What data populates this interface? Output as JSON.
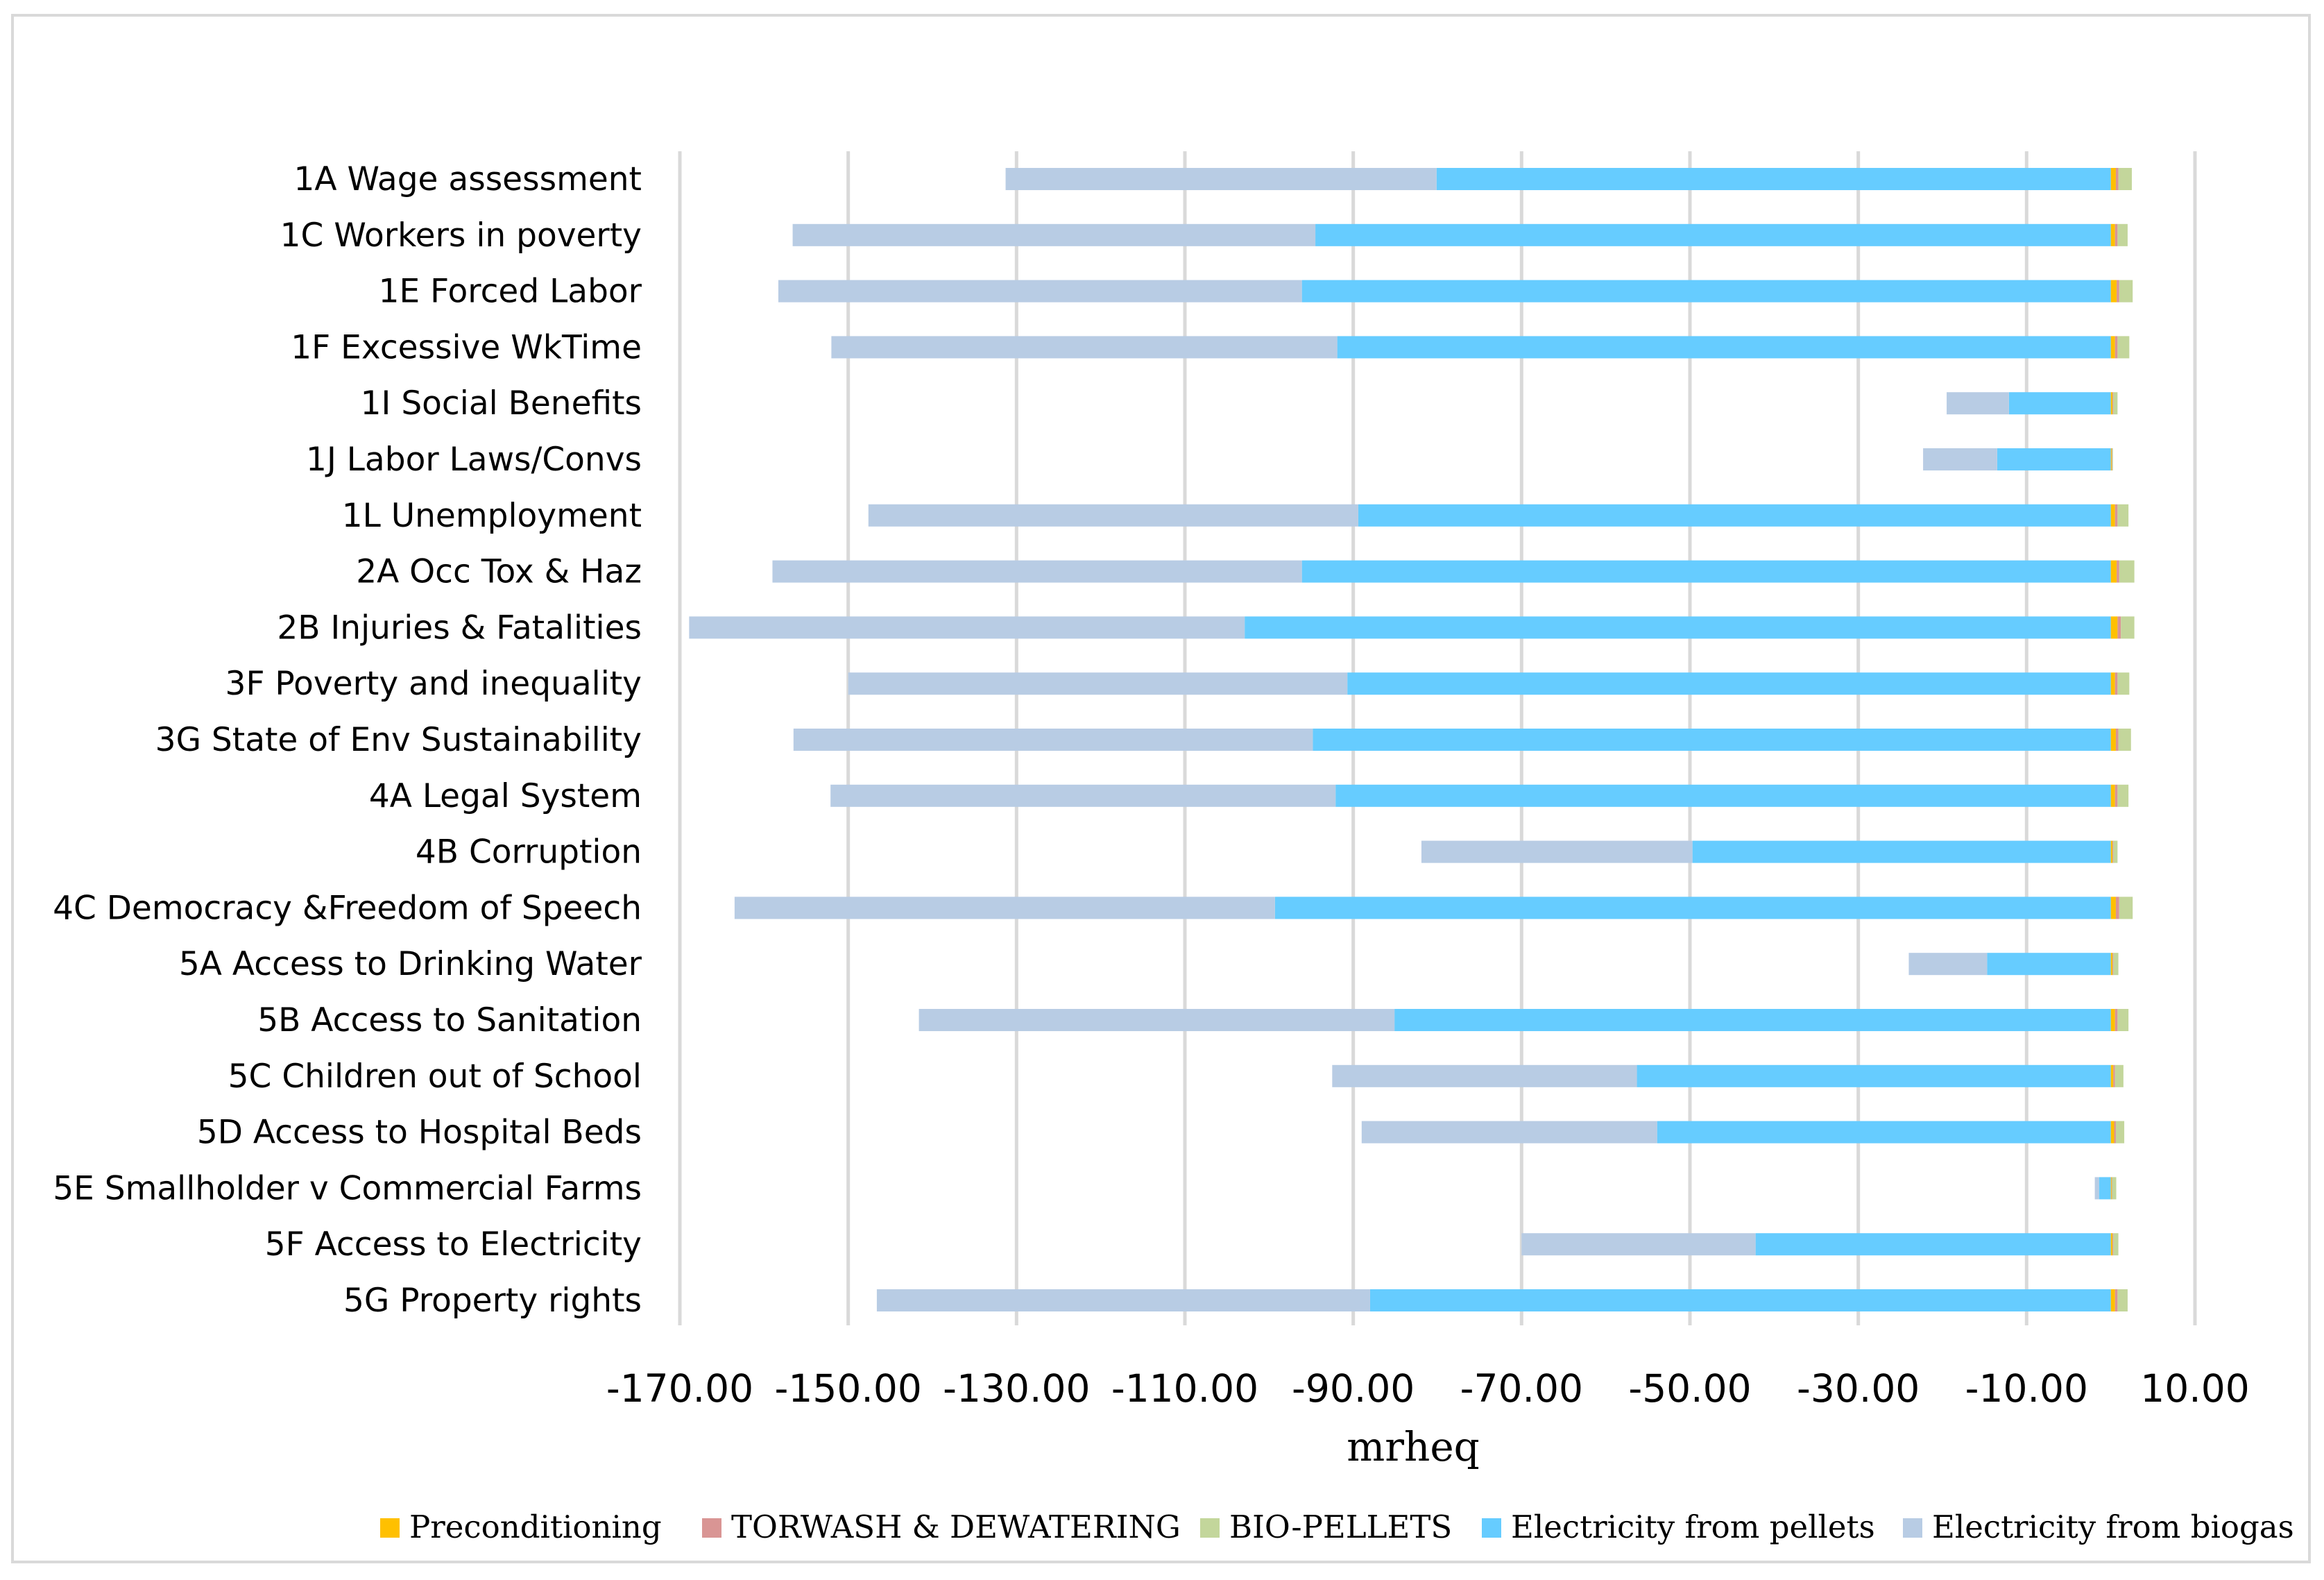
{
  "chart_data": {
    "type": "bar",
    "orientation": "horizontal",
    "stacked": true,
    "title": "",
    "xlabel": "mrheq",
    "ylabel": "",
    "xlim": [
      -170,
      10
    ],
    "xticks": [
      -170,
      -150,
      -130,
      -110,
      -90,
      -70,
      -50,
      -30,
      -10,
      10
    ],
    "xtick_labels": [
      "-170.00",
      "-150.00",
      "-130.00",
      "-110.00",
      "-90.00",
      "-70.00",
      "-50.00",
      "-30.00",
      "-10.00",
      "10.00"
    ],
    "grid": true,
    "legend_position": "bottom",
    "categories": [
      "1A Wage assessment",
      "1C Workers in poverty",
      "1E Forced Labor",
      "1F Excessive WkTime",
      "1I Social Benefits",
      "1J Labor Laws/Convs",
      "1L Unemployment",
      "2A Occ Tox & Haz",
      "2B Injuries & Fatalities",
      "3F Poverty and inequality",
      "3G State of Env Sustainability",
      "4A Legal System",
      "4B Corruption",
      "4C Democracy &Freedom of Speech",
      "5A Access to Drinking Water",
      "5B Access to Sanitation",
      "5C Children out of School",
      "5D Access to Hospital Beds",
      "5E Smallholder v Commercial Farms",
      "5F Access to Electricity",
      "5G Property rights"
    ],
    "series": [
      {
        "name": "Preconditioning",
        "color": "#ffc000",
        "values": [
          0.6,
          0.5,
          0.7,
          0.5,
          0.2,
          0.1,
          0.5,
          0.7,
          0.8,
          0.5,
          0.6,
          0.5,
          0.2,
          0.6,
          0.2,
          0.5,
          0.3,
          0.4,
          0.1,
          0.2,
          0.5
        ]
      },
      {
        "name": "TORWASH & DEWATERING",
        "color": "#d99594",
        "values": [
          0.3,
          0.3,
          0.3,
          0.3,
          0.1,
          0.05,
          0.3,
          0.3,
          0.4,
          0.3,
          0.3,
          0.3,
          0.1,
          0.4,
          0.1,
          0.3,
          0.2,
          0.2,
          0.05,
          0.1,
          0.3
        ]
      },
      {
        "name": "BIO-PELLETS",
        "color": "#c3d69b",
        "values": [
          1.6,
          1.2,
          1.6,
          1.4,
          0.5,
          0.1,
          1.3,
          1.8,
          1.6,
          1.4,
          1.5,
          1.3,
          0.5,
          1.6,
          0.6,
          1.3,
          1.0,
          1.0,
          0.5,
          0.6,
          1.2
        ]
      },
      {
        "name": "Electricity from pellets",
        "color": "#66ccff",
        "values": [
          -80.1,
          -94.5,
          -96.1,
          -91.9,
          -12.1,
          -13.5,
          -89.4,
          -96.1,
          -102.9,
          -90.7,
          -94.8,
          -92.1,
          -49.7,
          -99.3,
          -14.7,
          -85.1,
          -56.3,
          -53.9,
          -1.4,
          -42.2,
          -88.0
        ]
      },
      {
        "name": "Electricity from biogas",
        "color": "#b8cce4",
        "values": [
          -51.2,
          -62.1,
          -62.2,
          -60.1,
          -7.4,
          -8.8,
          -58.2,
          -62.9,
          -66.0,
          -59.3,
          -61.7,
          -60.0,
          -32.2,
          -64.2,
          -9.3,
          -56.5,
          -36.2,
          -35.1,
          -0.5,
          -27.8,
          -58.6
        ]
      }
    ]
  }
}
